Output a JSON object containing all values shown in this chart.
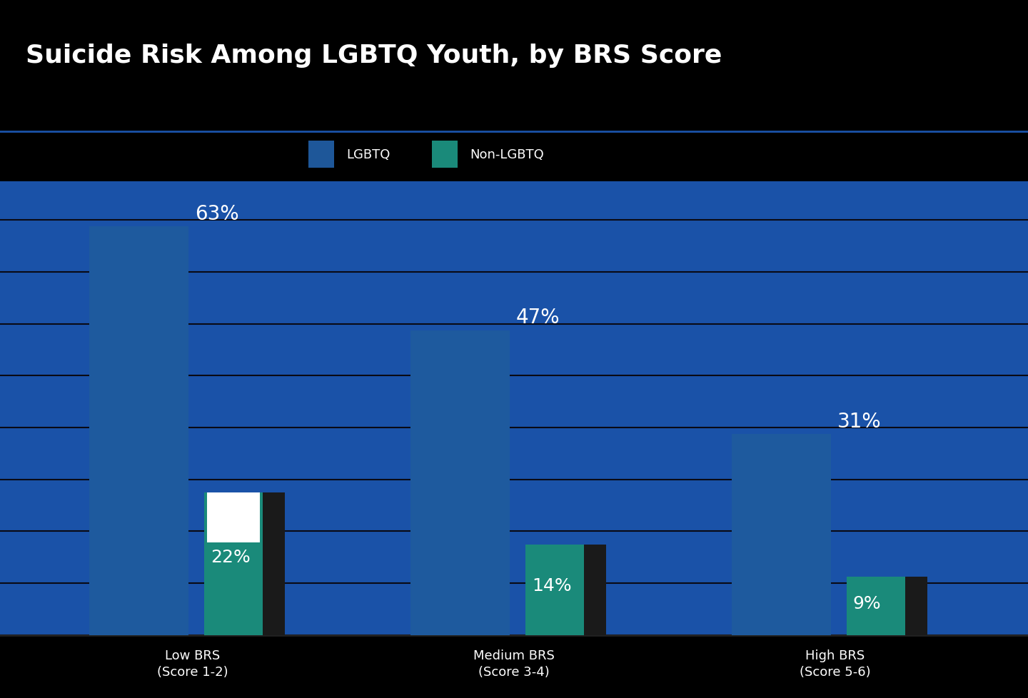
{
  "title": "Suicide Risk Among LGBTQ Youth, by BRS Score",
  "background_color": "#000000",
  "header_bg": "#1a237e",
  "footer_bg": "#1e2d6e",
  "plot_bg": "#1a52a8",
  "bar_groups": [
    {
      "label": "Low BRS\n(Score 1-2)",
      "lgbtq": 63,
      "non_lgbtq": 22
    },
    {
      "label": "Medium BRS\n(Score 3-4)",
      "lgbtq": 47,
      "non_lgbtq": 14
    },
    {
      "label": "High BRS\n(Score 5-6)",
      "lgbtq": 31,
      "non_lgbtq": 9
    }
  ],
  "lgbtq_color": "#1a52a8",
  "non_lgbtq_teal": "#1a8a7a",
  "non_lgbtq_dark": "#1a1a1a",
  "white_patch_color": "#ffffff",
  "legend_lgbtq_color": "#1e5799",
  "legend_non_lgbtq_color": "#1a8a7a",
  "legend_lgbtq_label": "LGBTQ",
  "legend_non_lgbtq_label": "Non-LGBTQ",
  "label_color": "#ffffff",
  "title_color": "#ffffff",
  "ylim": [
    0,
    70
  ],
  "bar_width": 0.28,
  "grid_color": "#0a0a14",
  "grid_linewidth": 1.5
}
